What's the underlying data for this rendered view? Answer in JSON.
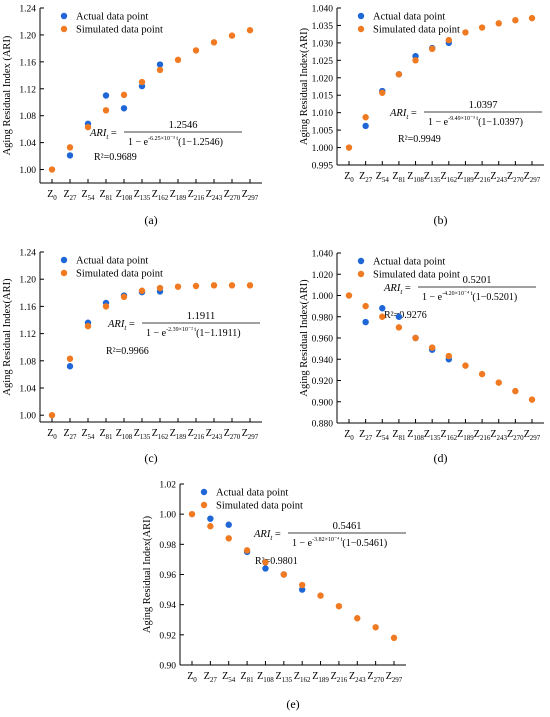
{
  "chart_data": [
    {
      "panel_label": "(a)",
      "type": "scatter",
      "ylabel": "Aging Residual Index (ARI)",
      "ylim": [
        0.98,
        1.24
      ],
      "yticks": [
        "1.00",
        "1.04",
        "1.08",
        "1.12",
        "1.16",
        "1.20",
        "1.24"
      ],
      "categories": [
        "Z0",
        "Z27",
        "Z54",
        "Z81",
        "Z108",
        "Z135",
        "Z162",
        "Z189",
        "Z216",
        "Z243",
        "Z270",
        "Z297"
      ],
      "legend_position": "top-left",
      "formula": {
        "lhs": "ARI",
        "lhs_sub": "t",
        "numerator": "1.2546",
        "denom_base": "1 − e",
        "denom_exp": "-6.25×10⁻³ t",
        "denom_tail": "(1−1.2546)"
      },
      "r2": "R²=0.9689",
      "series": [
        {
          "name": "Actual data point",
          "color": "#1f66d6",
          "points": [
            [
              "Z27",
              1.021
            ],
            [
              "Z54",
              1.068
            ],
            [
              "Z81",
              1.11
            ],
            [
              "Z108",
              1.091
            ],
            [
              "Z135",
              1.124
            ],
            [
              "Z162",
              1.156
            ]
          ]
        },
        {
          "name": "Simulated data point",
          "color": "#f07a22",
          "points": [
            [
              "Z0",
              1.0
            ],
            [
              "Z27",
              1.033
            ],
            [
              "Z54",
              1.063
            ],
            [
              "Z81",
              1.088
            ],
            [
              "Z108",
              1.111
            ],
            [
              "Z135",
              1.13
            ],
            [
              "Z162",
              1.148
            ],
            [
              "Z189",
              1.163
            ],
            [
              "Z216",
              1.177
            ],
            [
              "Z243",
              1.189
            ],
            [
              "Z270",
              1.199
            ],
            [
              "Z297",
              1.207
            ]
          ]
        }
      ]
    },
    {
      "panel_label": "(b)",
      "type": "scatter",
      "ylabel": "Aging Residual Index(ARI)",
      "ylim": [
        0.995,
        1.04
      ],
      "yticks": [
        "0.995",
        "1.000",
        "1.005",
        "1.010",
        "1.015",
        "1.020",
        "1.025",
        "1.030",
        "1.035",
        "1.040"
      ],
      "categories": [
        "Z0",
        "Z27",
        "Z54",
        "Z81",
        "Z108",
        "Z135",
        "Z162",
        "Z189",
        "Z216",
        "Z243",
        "Z270",
        "Z297"
      ],
      "legend_position": "top-left",
      "formula": {
        "lhs": "ARI",
        "lhs_sub": "t",
        "numerator": "1.0397",
        "denom_base": "1 − e",
        "denom_exp": "-9.49×10⁻³ t",
        "denom_tail": "(1−1.0397)"
      },
      "r2": "R²=0.9949",
      "series": [
        {
          "name": "Actual data point",
          "color": "#1f66d6",
          "points": [
            [
              "Z27",
              1.0062
            ],
            [
              "Z54",
              1.0162
            ],
            [
              "Z81",
              1.021
            ],
            [
              "Z108",
              1.0262
            ],
            [
              "Z135",
              1.0285
            ],
            [
              "Z162",
              1.03
            ]
          ]
        },
        {
          "name": "Simulated data point",
          "color": "#f07a22",
          "points": [
            [
              "Z0",
              1.0
            ],
            [
              "Z27",
              1.0087
            ],
            [
              "Z54",
              1.0157
            ],
            [
              "Z81",
              1.021
            ],
            [
              "Z108",
              1.025
            ],
            [
              "Z135",
              1.0283
            ],
            [
              "Z162",
              1.0308
            ],
            [
              "Z189",
              1.033
            ],
            [
              "Z216",
              1.0344
            ],
            [
              "Z243",
              1.0356
            ],
            [
              "Z270",
              1.0365
            ],
            [
              "Z297",
              1.0371
            ]
          ]
        }
      ]
    },
    {
      "panel_label": "(c)",
      "type": "scatter",
      "ylabel": "Aging Residual Index(ARI)",
      "ylim": [
        0.99,
        1.24
      ],
      "yticks": [
        "1.00",
        "1.04",
        "1.08",
        "1.12",
        "1.16",
        "1.20",
        "1.24"
      ],
      "categories": [
        "Z0",
        "Z27",
        "Z54",
        "Z81",
        "Z108",
        "Z135",
        "Z162",
        "Z189",
        "Z216",
        "Z243",
        "Z270",
        "Z297"
      ],
      "legend_position": "top-left",
      "formula": {
        "lhs": "ARI",
        "lhs_sub": "t",
        "numerator": "1.1911",
        "denom_base": "1 − e",
        "denom_exp": "-2.39×10⁻² t",
        "denom_tail": "(1−1.1911)"
      },
      "r2": "R²=0.9966",
      "series": [
        {
          "name": "Actual data point",
          "color": "#1f66d6",
          "points": [
            [
              "Z27",
              1.072
            ],
            [
              "Z54",
              1.136
            ],
            [
              "Z81",
              1.165
            ],
            [
              "Z108",
              1.176
            ],
            [
              "Z135",
              1.181
            ],
            [
              "Z162",
              1.182
            ]
          ]
        },
        {
          "name": "Simulated data point",
          "color": "#f07a22",
          "points": [
            [
              "Z0",
              1.0
            ],
            [
              "Z27",
              1.083
            ],
            [
              "Z54",
              1.131
            ],
            [
              "Z81",
              1.16
            ],
            [
              "Z108",
              1.174
            ],
            [
              "Z135",
              1.183
            ],
            [
              "Z162",
              1.187
            ],
            [
              "Z189",
              1.189
            ],
            [
              "Z216",
              1.19
            ],
            [
              "Z243",
              1.191
            ],
            [
              "Z270",
              1.191
            ],
            [
              "Z297",
              1.191
            ]
          ]
        }
      ]
    },
    {
      "panel_label": "(d)",
      "type": "scatter",
      "ylabel": "Aging Residual Index(ARI)",
      "ylim": [
        0.88,
        1.04
      ],
      "yticks": [
        "0.880",
        "0.900",
        "0.920",
        "0.940",
        "0.960",
        "0.980",
        "1.000",
        "1.020",
        "1.040"
      ],
      "categories": [
        "Z0",
        "Z27",
        "Z54",
        "Z81",
        "Z108",
        "Z135",
        "Z162",
        "Z189",
        "Z216",
        "Z243",
        "Z270",
        "Z297"
      ],
      "legend_position": "top-left",
      "formula": {
        "lhs": "ARI",
        "lhs_sub": "t",
        "numerator": "0.5201",
        "denom_base": "1 − e",
        "denom_exp": "-4.20×10⁻⁴ t",
        "denom_tail": "(1−0.5201)"
      },
      "r2": "R²=0.9276",
      "series": [
        {
          "name": "Actual data point",
          "color": "#1f66d6",
          "points": [
            [
              "Z27",
              0.975
            ],
            [
              "Z54",
              0.988
            ],
            [
              "Z81",
              0.98
            ],
            [
              "Z108",
              0.96
            ],
            [
              "Z135",
              0.949
            ],
            [
              "Z162",
              0.94
            ]
          ]
        },
        {
          "name": "Simulated data point",
          "color": "#f07a22",
          "points": [
            [
              "Z0",
              1.0
            ],
            [
              "Z27",
              0.99
            ],
            [
              "Z54",
              0.98
            ],
            [
              "Z81",
              0.97
            ],
            [
              "Z108",
              0.96
            ],
            [
              "Z135",
              0.951
            ],
            [
              "Z162",
              0.943
            ],
            [
              "Z189",
              0.934
            ],
            [
              "Z216",
              0.926
            ],
            [
              "Z243",
              0.918
            ],
            [
              "Z270",
              0.91
            ],
            [
              "Z297",
              0.902
            ]
          ]
        }
      ]
    },
    {
      "panel_label": "(e)",
      "type": "scatter",
      "ylabel": "Aging Residual Index(ARI)",
      "ylim": [
        0.9,
        1.02
      ],
      "yticks": [
        "0.90",
        "0.92",
        "0.94",
        "0.96",
        "0.98",
        "1.00",
        "1.02"
      ],
      "categories": [
        "Z0",
        "Z27",
        "Z54",
        "Z81",
        "Z108",
        "Z135",
        "Z162",
        "Z189",
        "Z216",
        "Z243",
        "Z270",
        "Z297"
      ],
      "legend_position": "top-left",
      "formula": {
        "lhs": "ARI",
        "lhs_sub": "t",
        "numerator": "0.5461",
        "denom_base": "1 − e",
        "denom_exp": "-3.82×10⁻⁴ t",
        "denom_tail": "(1−0.5461)"
      },
      "r2": "R²=0.9801",
      "series": [
        {
          "name": "Actual data point",
          "color": "#1f66d6",
          "points": [
            [
              "Z27",
              0.997
            ],
            [
              "Z54",
              0.993
            ],
            [
              "Z81",
              0.975
            ],
            [
              "Z108",
              0.964
            ],
            [
              "Z135",
              0.96
            ],
            [
              "Z162",
              0.95
            ]
          ]
        },
        {
          "name": "Simulated data point",
          "color": "#f07a22",
          "points": [
            [
              "Z0",
              1.0
            ],
            [
              "Z27",
              0.992
            ],
            [
              "Z54",
              0.984
            ],
            [
              "Z81",
              0.976
            ],
            [
              "Z108",
              0.968
            ],
            [
              "Z135",
              0.96
            ],
            [
              "Z162",
              0.953
            ],
            [
              "Z189",
              0.946
            ],
            [
              "Z216",
              0.939
            ],
            [
              "Z243",
              0.931
            ],
            [
              "Z270",
              0.925
            ],
            [
              "Z297",
              0.918
            ]
          ]
        }
      ]
    }
  ]
}
